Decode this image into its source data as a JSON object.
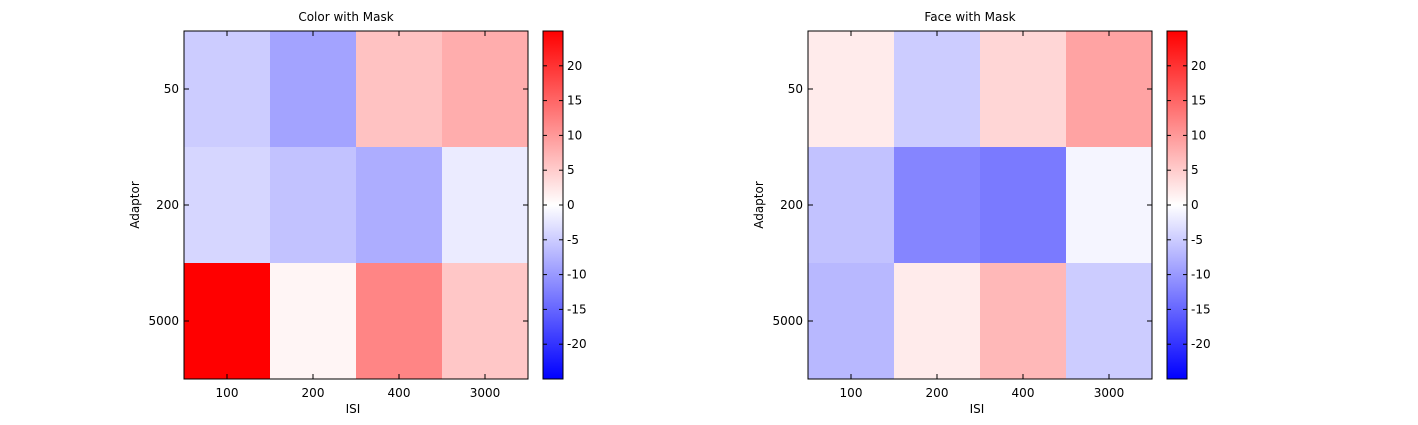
{
  "chart_data": [
    {
      "type": "heatmap",
      "title": "Color with Mask",
      "xlabel": "ISI",
      "ylabel": "Adaptor",
      "x_categories": [
        "100",
        "200",
        "400",
        "3000"
      ],
      "y_categories": [
        "50",
        "200",
        "5000"
      ],
      "values": [
        [
          -5,
          -9,
          6,
          8
        ],
        [
          -4,
          -6,
          -8,
          -2
        ],
        [
          25,
          1,
          12,
          5.5
        ]
      ],
      "colorbar": {
        "range": [
          -25,
          25
        ],
        "ticks": [
          20,
          15,
          10,
          5,
          0,
          -5,
          -10,
          -15,
          -20
        ],
        "tick_labels": [
          "20",
          "15",
          "10",
          "5",
          "0",
          "-5",
          "-10",
          "-15",
          "-20"
        ],
        "colormap": "blue-white-red"
      }
    },
    {
      "type": "heatmap",
      "title": "Face with Mask",
      "xlabel": "ISI",
      "ylabel": "Adaptor",
      "x_categories": [
        "100",
        "200",
        "400",
        "3000"
      ],
      "y_categories": [
        "50",
        "200",
        "5000"
      ],
      "values": [
        [
          2,
          -5,
          4,
          9
        ],
        [
          -6,
          -12,
          -13,
          -1
        ],
        [
          -7,
          2,
          7,
          -5
        ]
      ],
      "colorbar": {
        "range": [
          -25,
          25
        ],
        "ticks": [
          20,
          15,
          10,
          5,
          0,
          -5,
          -10,
          -15,
          -20
        ],
        "tick_labels": [
          "20",
          "15",
          "10",
          "5",
          "0",
          "-5",
          "-10",
          "-15",
          "-20"
        ],
        "colormap": "blue-white-red"
      }
    }
  ]
}
